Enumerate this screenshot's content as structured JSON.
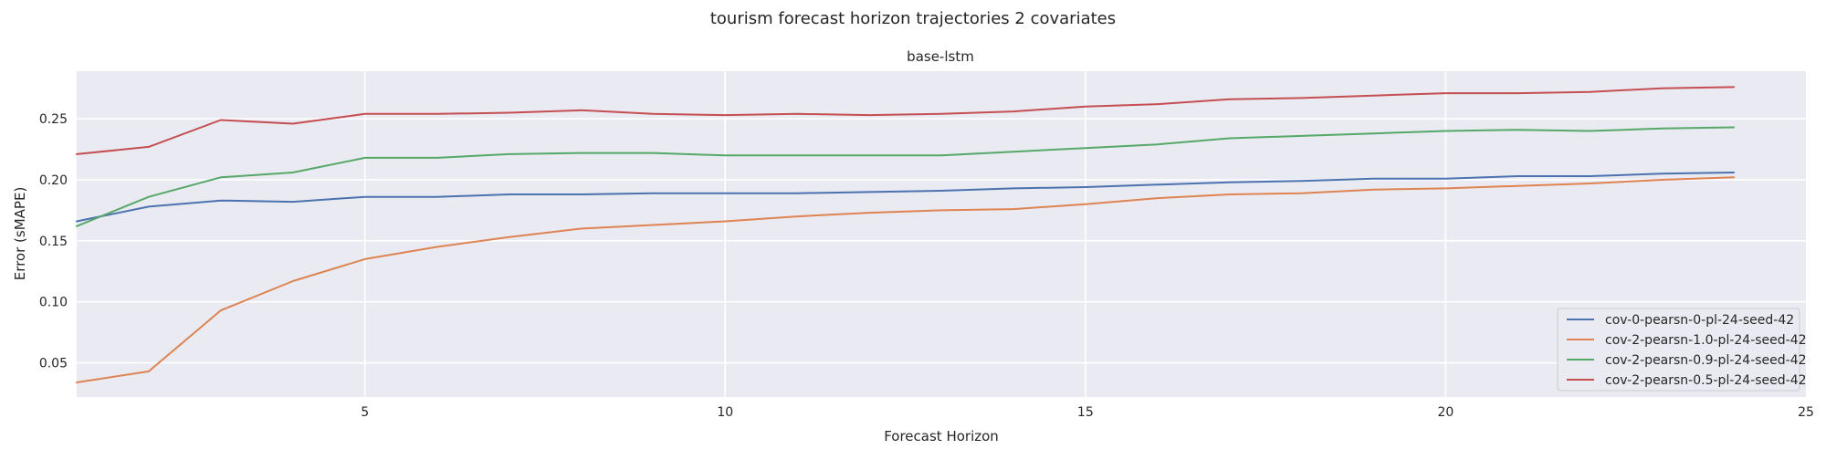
{
  "figure": {
    "suptitle": "tourism forecast horizon trajectories 2 covariates"
  },
  "chart_data": {
    "type": "line",
    "title": "base-lstm",
    "xlabel": "Forecast Horizon",
    "ylabel": "Error (sMAPE)",
    "xlim": [
      1,
      25
    ],
    "ylim": [
      0.022,
      0.289
    ],
    "xticks": [
      5,
      10,
      15,
      20,
      25
    ],
    "yticks": [
      0.05,
      0.1,
      0.15,
      0.2,
      0.25
    ],
    "xtick_labels": [
      "5",
      "10",
      "15",
      "20",
      "25"
    ],
    "ytick_labels": [
      "0.05",
      "0.10",
      "0.15",
      "0.20",
      "0.25"
    ],
    "grid": true,
    "legend_position": "lower-right",
    "x": [
      1,
      2,
      3,
      4,
      5,
      6,
      7,
      8,
      9,
      10,
      11,
      12,
      13,
      14,
      15,
      16,
      17,
      18,
      19,
      20,
      21,
      22,
      23,
      24
    ],
    "series": [
      {
        "name": "cov-0-pearsn-0-pl-24-seed-42",
        "color": "#4c72b0",
        "values": [
          0.166,
          0.178,
          0.183,
          0.182,
          0.186,
          0.186,
          0.188,
          0.188,
          0.189,
          0.189,
          0.189,
          0.19,
          0.191,
          0.193,
          0.194,
          0.196,
          0.198,
          0.199,
          0.201,
          0.201,
          0.203,
          0.203,
          0.205,
          0.206
        ]
      },
      {
        "name": "cov-2-pearsn-1.0-pl-24-seed-42",
        "color": "#dd8452",
        "values": [
          0.034,
          0.043,
          0.093,
          0.117,
          0.135,
          0.145,
          0.153,
          0.16,
          0.163,
          0.166,
          0.17,
          0.173,
          0.175,
          0.176,
          0.18,
          0.185,
          0.188,
          0.189,
          0.192,
          0.193,
          0.195,
          0.197,
          0.2,
          0.202
        ]
      },
      {
        "name": "cov-2-pearsn-0.9-pl-24-seed-42",
        "color": "#55a868",
        "values": [
          0.162,
          0.186,
          0.202,
          0.206,
          0.218,
          0.218,
          0.221,
          0.222,
          0.222,
          0.22,
          0.22,
          0.22,
          0.22,
          0.223,
          0.226,
          0.229,
          0.234,
          0.236,
          0.238,
          0.24,
          0.241,
          0.24,
          0.242,
          0.243
        ]
      },
      {
        "name": "cov-2-pearsn-0.5-pl-24-seed-42",
        "color": "#c44e52",
        "values": [
          0.221,
          0.227,
          0.249,
          0.246,
          0.254,
          0.254,
          0.255,
          0.257,
          0.254,
          0.253,
          0.254,
          0.253,
          0.254,
          0.256,
          0.26,
          0.262,
          0.266,
          0.267,
          0.269,
          0.271,
          0.271,
          0.272,
          0.275,
          0.276
        ]
      }
    ]
  }
}
